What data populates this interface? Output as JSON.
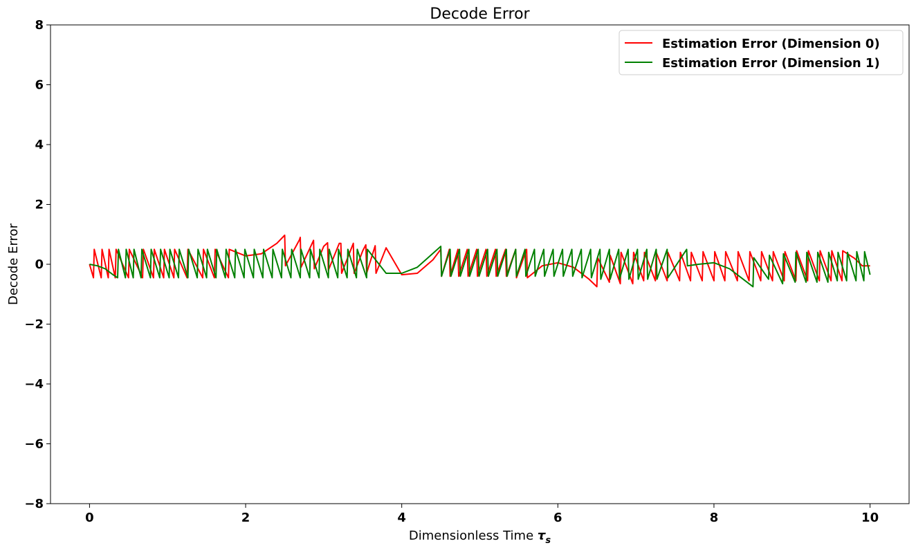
{
  "chart_data": {
    "type": "line",
    "title": "Decode Error",
    "xlabel": "Dimensionless Time",
    "xlabel_symbol": "τ",
    "xlabel_subscript": "s",
    "ylabel": "Decode Error",
    "xlim": [
      -0.5,
      10.5
    ],
    "ylim": [
      -8,
      8
    ],
    "xticks": [
      0,
      2,
      4,
      6,
      8,
      10
    ],
    "xtick_labels": [
      "0",
      "2",
      "4",
      "6",
      "8",
      "10"
    ],
    "yticks": [
      -8,
      -6,
      -4,
      -2,
      0,
      2,
      4,
      6,
      8
    ],
    "ytick_labels": [
      "−8",
      "−6",
      "−4",
      "−2",
      "0",
      "2",
      "4",
      "6",
      "8"
    ],
    "legend_position": "top-right",
    "series": [
      {
        "name": "Estimation Error (Dimension 0)",
        "color": "#ff0000",
        "x": [
          0.0,
          0.05,
          0.06,
          0.15,
          0.16,
          0.24,
          0.25,
          0.33,
          0.34,
          0.5,
          0.51,
          0.68,
          0.69,
          0.82,
          0.83,
          0.95,
          0.96,
          1.08,
          1.09,
          1.25,
          1.26,
          1.45,
          1.46,
          1.6,
          1.61,
          1.78,
          1.79,
          2.0,
          2.2,
          2.4,
          2.5,
          2.51,
          2.69,
          2.7,
          2.71,
          2.87,
          2.88,
          3.0,
          3.05,
          3.06,
          3.2,
          3.22,
          3.23,
          3.38,
          3.39,
          3.5,
          3.54,
          3.55,
          3.66,
          3.67,
          3.8,
          4.0,
          4.2,
          4.4,
          4.5,
          4.51,
          4.61,
          4.62,
          4.72,
          4.73,
          4.84,
          4.85,
          4.96,
          4.97,
          5.08,
          5.09,
          5.2,
          5.21,
          5.33,
          5.34,
          5.46,
          5.47,
          5.6,
          5.61,
          5.8,
          6.0,
          6.2,
          6.4,
          6.5,
          6.51,
          6.66,
          6.67,
          6.8,
          6.81,
          6.96,
          6.97,
          7.1,
          7.11,
          7.25,
          7.26,
          7.4,
          7.41,
          7.56,
          7.57,
          7.7,
          7.71,
          7.85,
          7.86,
          8.0,
          8.01,
          8.14,
          8.15,
          8.3,
          8.31,
          8.45,
          8.46,
          8.6,
          8.61,
          8.75,
          8.76,
          8.9,
          8.91,
          9.05,
          9.06,
          9.2,
          9.21,
          9.35,
          9.36,
          9.5,
          9.51,
          9.64,
          9.65,
          9.8,
          9.9,
          10.0
        ],
        "y": [
          0.0,
          -0.45,
          0.5,
          -0.45,
          0.5,
          -0.45,
          0.5,
          -0.45,
          0.5,
          -0.45,
          0.5,
          -0.45,
          0.5,
          -0.45,
          0.5,
          -0.45,
          0.5,
          -0.45,
          0.5,
          -0.45,
          0.5,
          -0.45,
          0.5,
          -0.45,
          0.5,
          -0.45,
          0.5,
          0.28,
          0.35,
          0.7,
          0.97,
          -0.05,
          0.82,
          0.9,
          -0.1,
          0.8,
          -0.15,
          0.6,
          0.72,
          -0.2,
          0.7,
          0.7,
          -0.3,
          0.7,
          -0.3,
          0.45,
          0.65,
          -0.3,
          0.62,
          -0.3,
          0.55,
          -0.35,
          -0.3,
          0.15,
          0.5,
          -0.4,
          0.5,
          -0.4,
          0.5,
          -0.4,
          0.5,
          -0.4,
          0.5,
          -0.4,
          0.5,
          -0.4,
          0.5,
          -0.4,
          0.5,
          -0.4,
          0.5,
          -0.45,
          0.5,
          -0.45,
          -0.05,
          0.05,
          -0.1,
          -0.5,
          -0.75,
          0.22,
          -0.6,
          0.3,
          -0.65,
          0.4,
          -0.65,
          0.4,
          -0.55,
          0.4,
          -0.55,
          0.4,
          -0.55,
          0.4,
          -0.55,
          0.4,
          -0.55,
          0.4,
          -0.55,
          0.42,
          -0.55,
          0.42,
          -0.55,
          0.42,
          -0.55,
          0.42,
          -0.55,
          0.42,
          -0.55,
          0.42,
          -0.55,
          0.42,
          -0.55,
          0.42,
          -0.55,
          0.45,
          -0.55,
          0.45,
          -0.55,
          0.45,
          -0.55,
          0.45,
          -0.55,
          0.45,
          0.2,
          -0.05,
          -0.05
        ]
      },
      {
        "name": "Estimation Error (Dimension 1)",
        "color": "#008000",
        "x": [
          0.0,
          0.1,
          0.2,
          0.3,
          0.36,
          0.37,
          0.46,
          0.47,
          0.56,
          0.57,
          0.66,
          0.67,
          0.78,
          0.79,
          0.9,
          0.91,
          1.02,
          1.03,
          1.14,
          1.15,
          1.26,
          1.27,
          1.38,
          1.39,
          1.5,
          1.51,
          1.62,
          1.63,
          1.74,
          1.75,
          1.86,
          1.87,
          1.98,
          1.99,
          2.1,
          2.11,
          2.22,
          2.23,
          2.34,
          2.35,
          2.46,
          2.47,
          2.58,
          2.59,
          2.7,
          2.71,
          2.82,
          2.83,
          2.94,
          2.95,
          3.06,
          3.07,
          3.18,
          3.19,
          3.3,
          3.31,
          3.42,
          3.43,
          3.55,
          3.56,
          3.8,
          4.0,
          4.2,
          4.5,
          4.51,
          4.62,
          4.63,
          4.74,
          4.75,
          4.86,
          4.87,
          4.98,
          4.99,
          5.1,
          5.11,
          5.22,
          5.23,
          5.34,
          5.35,
          5.46,
          5.47,
          5.58,
          5.59,
          5.7,
          5.71,
          5.82,
          5.83,
          5.94,
          5.95,
          6.06,
          6.07,
          6.18,
          6.19,
          6.3,
          6.31,
          6.42,
          6.43,
          6.54,
          6.55,
          6.66,
          6.67,
          6.78,
          6.79,
          6.9,
          6.91,
          7.02,
          7.03,
          7.14,
          7.15,
          7.26,
          7.27,
          7.4,
          7.41,
          7.65,
          7.66,
          7.8,
          8.0,
          8.2,
          8.4,
          8.5,
          8.51,
          8.7,
          8.71,
          8.88,
          8.89,
          9.04,
          9.05,
          9.18,
          9.19,
          9.32,
          9.33,
          9.46,
          9.47,
          9.58,
          9.59,
          9.7,
          9.71,
          9.82,
          9.83,
          9.92,
          9.93,
          10.0
        ],
        "y": [
          0.0,
          -0.05,
          -0.15,
          -0.35,
          -0.45,
          0.5,
          -0.45,
          0.5,
          -0.45,
          0.5,
          -0.45,
          0.5,
          -0.45,
          0.5,
          -0.45,
          0.5,
          -0.45,
          0.5,
          -0.45,
          0.5,
          -0.45,
          0.5,
          -0.45,
          0.5,
          -0.45,
          0.5,
          -0.45,
          0.5,
          -0.45,
          0.5,
          -0.45,
          0.5,
          -0.45,
          0.5,
          -0.45,
          0.5,
          -0.45,
          0.5,
          -0.45,
          0.5,
          -0.45,
          0.5,
          -0.45,
          0.5,
          -0.45,
          0.5,
          -0.45,
          0.5,
          -0.45,
          0.5,
          -0.45,
          0.5,
          -0.45,
          0.5,
          -0.45,
          0.5,
          -0.45,
          0.5,
          -0.45,
          0.5,
          -0.3,
          -0.3,
          -0.1,
          0.6,
          -0.4,
          0.5,
          -0.4,
          0.5,
          -0.4,
          0.5,
          -0.4,
          0.5,
          -0.4,
          0.5,
          -0.4,
          0.5,
          -0.4,
          0.5,
          -0.4,
          0.5,
          -0.4,
          0.5,
          -0.4,
          0.5,
          -0.4,
          0.5,
          -0.4,
          0.5,
          -0.4,
          0.5,
          -0.4,
          0.5,
          -0.4,
          0.5,
          -0.45,
          0.5,
          -0.45,
          0.5,
          -0.5,
          0.5,
          -0.5,
          0.5,
          -0.5,
          0.5,
          -0.5,
          0.5,
          -0.5,
          0.5,
          -0.5,
          0.5,
          -0.5,
          0.5,
          -0.45,
          0.5,
          -0.05,
          0.0,
          0.05,
          -0.15,
          -0.55,
          -0.75,
          0.22,
          -0.5,
          0.3,
          -0.65,
          0.35,
          -0.6,
          0.4,
          -0.6,
          0.4,
          -0.6,
          0.4,
          -0.6,
          0.4,
          -0.55,
          0.4,
          -0.55,
          0.4,
          -0.55,
          0.42,
          -0.55,
          0.42,
          -0.35
        ]
      }
    ]
  }
}
